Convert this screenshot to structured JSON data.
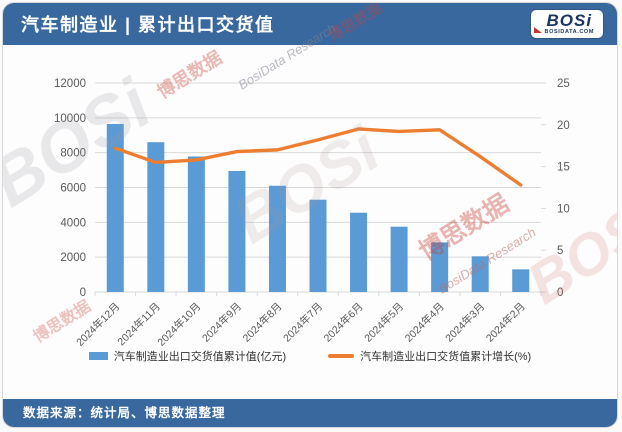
{
  "header": {
    "title": "汽车制造业 | 累计出口交货值",
    "logo": {
      "text": "BOSi",
      "subtext": "BOSIDATA.COM"
    }
  },
  "footer": {
    "source": "数据来源：统计局、博思数据整理"
  },
  "watermark": {
    "brand": "BOSi",
    "cn": "博思数据",
    "en": "BosiData Research"
  },
  "colors": {
    "band": "#38689E",
    "bar": "#5B9BD5",
    "line": "#ED7D31",
    "grid": "#D9D9D9",
    "axis_text": "#595959",
    "wmred": "#C0392B"
  },
  "chart_data": {
    "type": "bar",
    "subtype": "combo-bar-line",
    "title": "汽车制造业 | 累计出口交货值",
    "categories": [
      "2024年12月",
      "2024年11月",
      "2024年10月",
      "2024年9月",
      "2024年8月",
      "2024年7月",
      "2024年6月",
      "2024年5月",
      "2024年4月",
      "2024年3月",
      "2024年2月"
    ],
    "series": [
      {
        "name": "汽车制造业出口交货值累计值(亿元)",
        "type": "bar",
        "axis": "left",
        "values": [
          9650,
          8600,
          7780,
          6950,
          6100,
          5300,
          4550,
          3750,
          2850,
          2050,
          1300
        ]
      },
      {
        "name": "汽车制造业出口交货值累计增长(%)",
        "type": "line",
        "axis": "right",
        "values": [
          17.2,
          15.5,
          15.8,
          16.8,
          17.0,
          18.2,
          19.5,
          19.2,
          19.4,
          16.2,
          12.8
        ]
      }
    ],
    "left_axis": {
      "min": 0,
      "max": 12000,
      "step": 2000,
      "ticks": [
        "0",
        "2000",
        "4000",
        "6000",
        "8000",
        "10000",
        "12000"
      ]
    },
    "right_axis": {
      "min": 0,
      "max": 25,
      "step": 5,
      "ticks": [
        "0",
        "5",
        "10",
        "15",
        "20",
        "25"
      ]
    },
    "grid": true,
    "legend_position": "bottom"
  }
}
